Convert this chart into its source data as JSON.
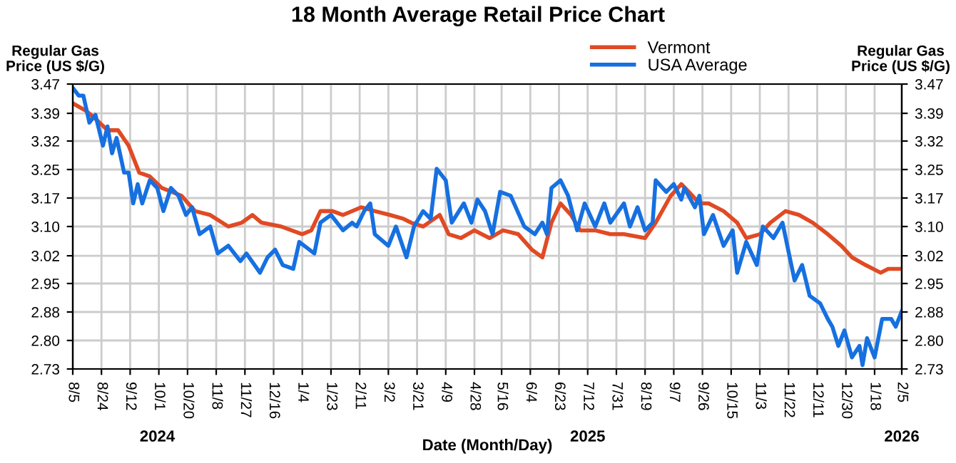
{
  "chart_data": {
    "type": "line",
    "title": "18 Month Average Retail Price Chart",
    "xlabel": "Date (Month/Day)",
    "ylabel": "Regular Gas\nPrice (US $/G)",
    "y2label": "Regular Gas\nPrice (US $/G)",
    "xlim": [
      "2024-08-05",
      "2026-02-05"
    ],
    "xticks": [
      {
        "value": "2024-08-05",
        "label": "8/5"
      },
      {
        "value": "2024-08-24",
        "label": "8/24"
      },
      {
        "value": "2024-09-12",
        "label": "9/12"
      },
      {
        "value": "2024-10-01",
        "label": "10/1"
      },
      {
        "value": "2024-10-20",
        "label": "10/20"
      },
      {
        "value": "2024-11-08",
        "label": "11/8"
      },
      {
        "value": "2024-11-27",
        "label": "11/27"
      },
      {
        "value": "2024-12-16",
        "label": "12/16"
      },
      {
        "value": "2025-01-04",
        "label": "1/4"
      },
      {
        "value": "2025-01-23",
        "label": "1/23"
      },
      {
        "value": "2025-02-11",
        "label": "2/11"
      },
      {
        "value": "2025-03-02",
        "label": "3/2"
      },
      {
        "value": "2025-03-21",
        "label": "3/21"
      },
      {
        "value": "2025-04-09",
        "label": "4/9"
      },
      {
        "value": "2025-04-28",
        "label": "4/28"
      },
      {
        "value": "2025-05-16",
        "label": "5/16"
      },
      {
        "value": "2025-06-04",
        "label": "6/4"
      },
      {
        "value": "2025-06-23",
        "label": "6/23"
      },
      {
        "value": "2025-07-12",
        "label": "7/12"
      },
      {
        "value": "2025-07-31",
        "label": "7/31"
      },
      {
        "value": "2025-08-19",
        "label": "8/19"
      },
      {
        "value": "2025-09-07",
        "label": "9/7"
      },
      {
        "value": "2025-09-26",
        "label": "9/26"
      },
      {
        "value": "2025-10-15",
        "label": "10/15"
      },
      {
        "value": "2025-11-03",
        "label": "11/3"
      },
      {
        "value": "2025-11-22",
        "label": "11/22"
      },
      {
        "value": "2025-12-11",
        "label": "12/11"
      },
      {
        "value": "2025-12-30",
        "label": "12/30"
      },
      {
        "value": "2026-01-18",
        "label": "1/18"
      },
      {
        "value": "2026-02-05",
        "label": "2/5"
      }
    ],
    "x2lim": [
      "2024-08-05",
      "2026-02-05"
    ],
    "x2ticks": [
      {
        "value": "2024-09-30",
        "label": "2024"
      },
      {
        "value": "2025-07-12",
        "label": "2025"
      },
      {
        "value": "2026-02-05",
        "label": "2026"
      }
    ],
    "ylim": [
      2.73,
      3.47
    ],
    "yticks": [
      {
        "value": 2.73,
        "label": "2.73"
      },
      {
        "value": 2.804,
        "label": "2.80"
      },
      {
        "value": 2.878,
        "label": "2.88"
      },
      {
        "value": 2.952,
        "label": "2.95"
      },
      {
        "value": 3.024,
        "label": "3.02"
      },
      {
        "value": 3.1,
        "label": "3.10"
      },
      {
        "value": 3.174,
        "label": "3.17"
      },
      {
        "value": 3.248,
        "label": "3.25"
      },
      {
        "value": 3.322,
        "label": "3.32"
      },
      {
        "value": 3.394,
        "label": "3.39"
      },
      {
        "value": 3.47,
        "label": "3.47"
      }
    ],
    "y2lim": [
      2.73,
      3.47
    ],
    "y2ticks": [
      {
        "value": 2.73,
        "label": "2.73"
      },
      {
        "value": 2.804,
        "label": "2.80"
      },
      {
        "value": 2.878,
        "label": "2.88"
      },
      {
        "value": 2.952,
        "label": "2.95"
      },
      {
        "value": 3.024,
        "label": "3.02"
      },
      {
        "value": 3.1,
        "label": "3.10"
      },
      {
        "value": 3.174,
        "label": "3.17"
      },
      {
        "value": 3.248,
        "label": "3.25"
      },
      {
        "value": 3.322,
        "label": "3.32"
      },
      {
        "value": 3.394,
        "label": "3.39"
      },
      {
        "value": 3.47,
        "label": "3.47"
      }
    ],
    "grid": true,
    "legend": "top",
    "marker": "none",
    "line_style": "solid",
    "series": [
      {
        "name": "Vermont",
        "color": "#e04a24",
        "x": [
          "2024-08-05",
          "2024-08-14",
          "2024-08-20",
          "2024-08-28",
          "2024-09-04",
          "2024-09-11",
          "2024-09-18",
          "2024-09-25",
          "2024-10-03",
          "2024-10-16",
          "2024-10-25",
          "2024-11-04",
          "2024-11-16",
          "2024-11-25",
          "2024-12-02",
          "2024-12-08",
          "2024-12-21",
          "2025-01-04",
          "2025-01-10",
          "2025-01-16",
          "2025-01-24",
          "2025-01-31",
          "2025-02-12",
          "2025-02-21",
          "2025-03-03",
          "2025-03-12",
          "2025-03-17",
          "2025-03-25",
          "2025-04-05",
          "2025-04-11",
          "2025-04-19",
          "2025-04-28",
          "2025-05-08",
          "2025-05-17",
          "2025-05-27",
          "2025-06-05",
          "2025-06-12",
          "2025-06-18",
          "2025-06-24",
          "2025-07-01",
          "2025-07-07",
          "2025-07-17",
          "2025-07-27",
          "2025-08-05",
          "2025-08-19",
          "2025-08-26",
          "2025-09-05",
          "2025-09-12",
          "2025-09-17",
          "2025-09-24",
          "2025-09-30",
          "2025-10-10",
          "2025-10-19",
          "2025-10-25",
          "2025-11-03",
          "2025-11-10",
          "2025-11-20",
          "2025-11-29",
          "2025-12-08",
          "2025-12-18",
          "2025-12-27",
          "2026-01-03",
          "2026-01-12",
          "2026-01-22",
          "2026-01-27",
          "2026-02-05"
        ],
        "values": [
          3.42,
          3.4,
          3.38,
          3.35,
          3.35,
          3.31,
          3.24,
          3.23,
          3.2,
          3.18,
          3.14,
          3.13,
          3.1,
          3.11,
          3.13,
          3.11,
          3.1,
          3.08,
          3.09,
          3.14,
          3.14,
          3.13,
          3.15,
          3.14,
          3.13,
          3.12,
          3.11,
          3.1,
          3.13,
          3.08,
          3.07,
          3.09,
          3.07,
          3.09,
          3.08,
          3.04,
          3.02,
          3.11,
          3.16,
          3.13,
          3.09,
          3.09,
          3.08,
          3.08,
          3.07,
          3.11,
          3.18,
          3.21,
          3.19,
          3.16,
          3.16,
          3.14,
          3.11,
          3.07,
          3.08,
          3.11,
          3.14,
          3.13,
          3.11,
          3.08,
          3.05,
          3.02,
          3.0,
          2.98,
          2.99,
          2.99
        ]
      },
      {
        "name": "USA Average",
        "color": "#1670e0",
        "x": [
          "2024-08-05",
          "2024-08-09",
          "2024-08-12",
          "2024-08-16",
          "2024-08-20",
          "2024-08-25",
          "2024-08-28",
          "2024-08-31",
          "2024-09-03",
          "2024-09-08",
          "2024-09-11",
          "2024-09-14",
          "2024-09-17",
          "2024-09-20",
          "2024-09-25",
          "2024-09-30",
          "2024-10-04",
          "2024-10-09",
          "2024-10-14",
          "2024-10-19",
          "2024-10-23",
          "2024-10-28",
          "2024-11-04",
          "2024-11-09",
          "2024-11-16",
          "2024-11-24",
          "2024-11-28",
          "2024-12-07",
          "2024-12-12",
          "2024-12-17",
          "2024-12-22",
          "2024-12-29",
          "2025-01-02",
          "2025-01-12",
          "2025-01-16",
          "2025-01-23",
          "2025-01-31",
          "2025-02-06",
          "2025-02-09",
          "2025-02-14",
          "2025-02-18",
          "2025-02-21",
          "2025-03-02",
          "2025-03-07",
          "2025-03-14",
          "2025-03-19",
          "2025-03-25",
          "2025-03-30",
          "2025-04-03",
          "2025-04-09",
          "2025-04-13",
          "2025-04-21",
          "2025-04-26",
          "2025-04-30",
          "2025-05-05",
          "2025-05-10",
          "2025-05-15",
          "2025-05-22",
          "2025-05-31",
          "2025-06-07",
          "2025-06-12",
          "2025-06-15",
          "2025-06-18",
          "2025-06-24",
          "2025-06-29",
          "2025-07-05",
          "2025-07-10",
          "2025-07-17",
          "2025-07-23",
          "2025-07-27",
          "2025-08-05",
          "2025-08-09",
          "2025-08-14",
          "2025-08-19",
          "2025-08-24",
          "2025-08-26",
          "2025-09-02",
          "2025-09-07",
          "2025-09-12",
          "2025-09-14",
          "2025-09-21",
          "2025-09-24",
          "2025-09-27",
          "2025-10-03",
          "2025-10-10",
          "2025-10-16",
          "2025-10-19",
          "2025-10-25",
          "2025-11-01",
          "2025-11-05",
          "2025-11-12",
          "2025-11-18",
          "2025-11-26",
          "2025-12-01",
          "2025-12-06",
          "2025-12-13",
          "2025-12-18",
          "2025-12-21",
          "2025-12-25",
          "2025-12-29",
          "2026-01-03",
          "2026-01-08",
          "2026-01-10",
          "2026-01-13",
          "2026-01-18",
          "2026-01-23",
          "2026-01-29",
          "2026-02-01",
          "2026-02-05"
        ],
        "values": [
          3.46,
          3.44,
          3.44,
          3.37,
          3.39,
          3.31,
          3.36,
          3.29,
          3.33,
          3.24,
          3.24,
          3.16,
          3.21,
          3.16,
          3.22,
          3.2,
          3.14,
          3.2,
          3.18,
          3.13,
          3.15,
          3.08,
          3.1,
          3.03,
          3.05,
          3.01,
          3.03,
          2.98,
          3.02,
          3.04,
          3.0,
          2.99,
          3.06,
          3.03,
          3.11,
          3.13,
          3.09,
          3.11,
          3.1,
          3.14,
          3.16,
          3.08,
          3.05,
          3.1,
          3.02,
          3.1,
          3.14,
          3.12,
          3.25,
          3.22,
          3.11,
          3.16,
          3.11,
          3.17,
          3.14,
          3.08,
          3.19,
          3.18,
          3.1,
          3.08,
          3.11,
          3.08,
          3.2,
          3.22,
          3.18,
          3.09,
          3.16,
          3.1,
          3.16,
          3.11,
          3.16,
          3.1,
          3.15,
          3.09,
          3.11,
          3.22,
          3.19,
          3.21,
          3.17,
          3.2,
          3.15,
          3.18,
          3.08,
          3.13,
          3.05,
          3.09,
          2.98,
          3.06,
          3.0,
          3.1,
          3.07,
          3.11,
          2.96,
          3.0,
          2.92,
          2.9,
          2.86,
          2.84,
          2.79,
          2.83,
          2.76,
          2.79,
          2.74,
          2.81,
          2.76,
          2.86,
          2.86,
          2.84,
          2.88
        ]
      }
    ]
  }
}
